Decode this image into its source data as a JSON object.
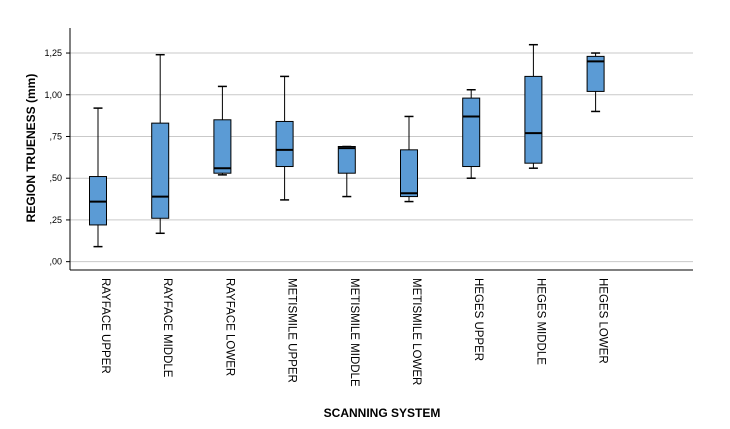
{
  "chart_data": {
    "type": "boxplot",
    "xlabel": "SCANNING SYSTEM",
    "ylabel": "REGION TRUENESS (mm)",
    "ylim": [
      -0.05,
      1.4
    ],
    "yticks": [
      0.0,
      0.25,
      0.5,
      0.75,
      1.0,
      1.25
    ],
    "ytick_labels": [
      ",00",
      ",25",
      ",50",
      ",75",
      "1,00",
      "1,25"
    ],
    "grid": "horizontal",
    "box_color": "#5b9bd5",
    "categories": [
      "RAYFACE UPPER",
      "RAYFACE MIDDLE",
      "RAYFACE LOWER",
      "METISMILE UPPER",
      "METISMILE MIDDLE",
      "METISMILE LOWER",
      "HEGES UPPER",
      "HEGES MIDDLE",
      "HEGES LOWER"
    ],
    "boxes": [
      {
        "min": 0.09,
        "q1": 0.22,
        "median": 0.36,
        "q3": 0.51,
        "max": 0.92
      },
      {
        "min": 0.17,
        "q1": 0.26,
        "median": 0.39,
        "q3": 0.83,
        "max": 1.24
      },
      {
        "min": 0.52,
        "q1": 0.53,
        "median": 0.56,
        "q3": 0.85,
        "max": 1.05
      },
      {
        "min": 0.37,
        "q1": 0.57,
        "median": 0.67,
        "q3": 0.84,
        "max": 1.11
      },
      {
        "min": 0.39,
        "q1": 0.53,
        "median": 0.68,
        "q3": 0.69,
        "max": 0.69
      },
      {
        "min": 0.36,
        "q1": 0.39,
        "median": 0.41,
        "q3": 0.67,
        "max": 0.87
      },
      {
        "min": 0.5,
        "q1": 0.57,
        "median": 0.87,
        "q3": 0.98,
        "max": 1.03
      },
      {
        "min": 0.56,
        "q1": 0.59,
        "median": 0.77,
        "q3": 1.11,
        "max": 1.3
      },
      {
        "min": 0.9,
        "q1": 1.02,
        "median": 1.2,
        "q3": 1.23,
        "max": 1.25
      }
    ]
  }
}
